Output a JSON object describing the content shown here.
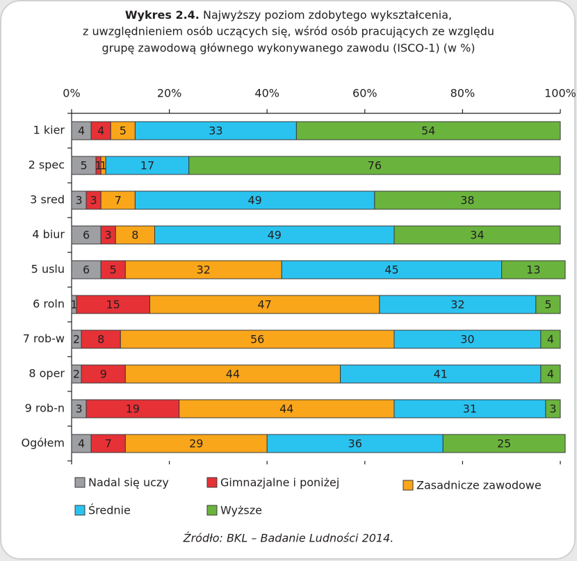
{
  "chart_data": {
    "type": "stacked_barh",
    "title": "Wykres 2.4.",
    "subtitle_lines": [
      "Najwyższy poziom zdobytego wykształcenia,",
      "z uwzględnieniem osób uczących się, wśród osób pracujących ze względu",
      "grupę zawodową głównego wykonywanego zawodu (ISCO-1) (w %)"
    ],
    "categories": [
      "1 kier",
      "2 spec",
      "3 sred",
      "4 biur",
      "5 uslu",
      "6 roln",
      "7 rob-w",
      "8 oper",
      "9 rob-n",
      "Ogółem"
    ],
    "series": [
      {
        "name": "Nadal się uczy",
        "color": "#9d9fa2",
        "values": [
          4,
          5,
          3,
          6,
          6,
          1,
          2,
          2,
          3,
          4
        ]
      },
      {
        "name": "Gimnazjalne i poniżej",
        "color": "#e63137",
        "values": [
          4,
          1,
          3,
          3,
          5,
          15,
          8,
          9,
          19,
          7
        ]
      },
      {
        "name": "Zasadnicze zawodowe",
        "color": "#f9a61a",
        "values": [
          5,
          1,
          7,
          8,
          32,
          47,
          56,
          44,
          44,
          29
        ]
      },
      {
        "name": "Średnie",
        "color": "#2ac3f0",
        "values": [
          33,
          17,
          49,
          49,
          45,
          32,
          30,
          41,
          31,
          36
        ]
      },
      {
        "name": "Wyższe",
        "color": "#6ab43e",
        "values": [
          54,
          76,
          38,
          34,
          13,
          5,
          4,
          4,
          3,
          25
        ]
      }
    ],
    "xlim": [
      0,
      100
    ],
    "xticks": [
      {
        "value": 0,
        "label": "0%"
      },
      {
        "value": 20,
        "label": "20%"
      },
      {
        "value": 40,
        "label": "40%"
      },
      {
        "value": 60,
        "label": "60%"
      },
      {
        "value": 80,
        "label": "80%"
      },
      {
        "value": 100,
        "label": "100%"
      }
    ],
    "source": "Źródło: BKL – Badanie Ludności 2014."
  }
}
